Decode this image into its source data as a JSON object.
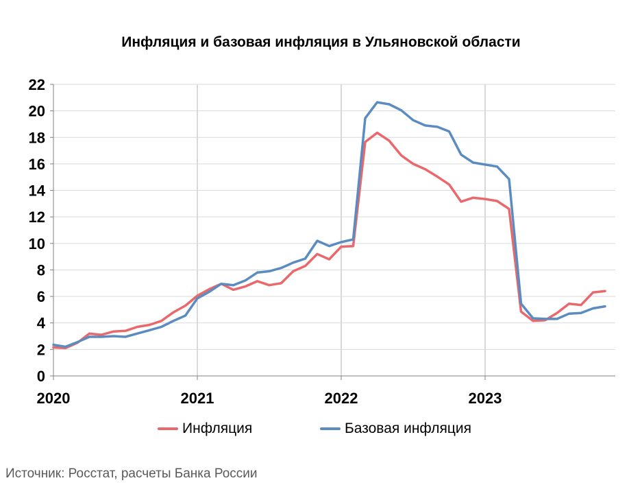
{
  "chart_data": {
    "type": "line",
    "title": "Инфляция и базовая инфляция в Ульяновской области",
    "xlabel": "",
    "ylabel": "",
    "ylim": [
      0,
      22
    ],
    "yticks": [
      0,
      2,
      4,
      6,
      8,
      10,
      12,
      14,
      16,
      18,
      20,
      22
    ],
    "xticks": [
      "2020",
      "2021",
      "2022",
      "2023"
    ],
    "x_start": "2020-01",
    "grid": {
      "horizontal": true,
      "vertical_at_years": true
    },
    "legend_position": "bottom",
    "series": [
      {
        "name": "Инфляция",
        "color": "#e8686b",
        "values": [
          2.15,
          2.1,
          2.5,
          3.2,
          3.1,
          3.35,
          3.4,
          3.7,
          3.85,
          4.15,
          4.8,
          5.3,
          6.05,
          6.55,
          6.95,
          6.5,
          6.75,
          7.15,
          6.85,
          7.0,
          7.9,
          8.3,
          9.2,
          8.8,
          9.75,
          9.8,
          17.65,
          18.35,
          17.75,
          16.65,
          16.0,
          15.6,
          15.05,
          14.45,
          13.15,
          13.45,
          13.35,
          13.2,
          12.6,
          4.85,
          4.15,
          4.2,
          4.75,
          5.45,
          5.35,
          6.3,
          6.4
        ]
      },
      {
        "name": "Базовая инфляция",
        "color": "#5a8cc0",
        "values": [
          2.35,
          2.2,
          2.55,
          2.95,
          2.95,
          3.0,
          2.95,
          3.2,
          3.45,
          3.7,
          4.15,
          4.55,
          5.85,
          6.35,
          6.95,
          6.85,
          7.2,
          7.8,
          7.9,
          8.15,
          8.55,
          8.85,
          10.2,
          9.8,
          10.1,
          10.3,
          19.45,
          20.65,
          20.5,
          20.05,
          19.3,
          18.9,
          18.8,
          18.45,
          16.7,
          16.1,
          15.95,
          15.8,
          14.85,
          5.45,
          4.35,
          4.3,
          4.3,
          4.7,
          4.75,
          5.1,
          5.25
        ]
      }
    ],
    "source": "Источник: Росстат, расчеты Банка России"
  }
}
